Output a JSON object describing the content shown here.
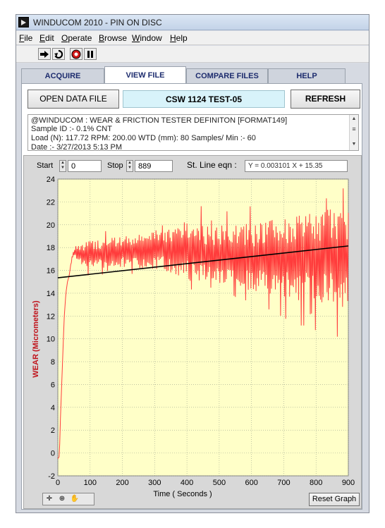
{
  "window": {
    "title": "WINDUCOM 2010 - PIN ON DISC"
  },
  "menu": [
    {
      "key": "F",
      "rest": "ile"
    },
    {
      "key": "E",
      "rest": "dit"
    },
    {
      "key": "O",
      "rest": "perate"
    },
    {
      "key": "B",
      "rest": "rowse"
    },
    {
      "key": "W",
      "rest": "indow"
    },
    {
      "key": "H",
      "rest": "elp"
    }
  ],
  "toolbar": {
    "run_icon": "run-arrow-icon",
    "run_continuous_icon": "run-continuous-icon",
    "abort_icon": "abort-stop-icon",
    "pause_icon": "pause-icon"
  },
  "tabs": [
    {
      "label": "ACQUIRE"
    },
    {
      "label": "VIEW FILE"
    },
    {
      "label": "COMPARE FILES"
    },
    {
      "label": "HELP"
    }
  ],
  "active_tab": "VIEW FILE",
  "controls": {
    "open_label": "OPEN DATA FILE",
    "file_name": "CSW 1124 TEST-05",
    "refresh_label": "REFRESH"
  },
  "info": {
    "line1": "@WINDUCOM : WEAR & FRICTION TESTER DEFINITON [FORMAT149]",
    "line2": "Sample ID :- 0.1% CNT",
    "line3": "Load (N):  117.72 RPM:   200.00 WTD (mm):   80   Samples/ Min :-   60",
    "line4": "Date :- 3/27/2013  5:13 PM"
  },
  "graph_controls": {
    "start_label": "Start",
    "start_value": "0",
    "stop_label": "Stop",
    "stop_value": "889",
    "eqn_label": "St. Line eqn :",
    "eqn_value": "Y =  0.003101  X +  15.35",
    "reset_label": "Reset Graph"
  },
  "palette_icons": [
    "cursor-move-icon",
    "zoom-icon",
    "pan-hand-icon"
  ],
  "colors": {
    "plot_bg": "#ffffc8",
    "wear_line": "#ff3c3c",
    "fit_line": "#000000",
    "grid": "#9aa28c"
  },
  "chart_data": {
    "type": "line",
    "xlabel": "Time ( Seconds )",
    "ylabel": "WEAR (Micrometers)",
    "xlim": [
      0,
      900
    ],
    "ylim": [
      -2,
      24
    ],
    "xticks": [
      0,
      100,
      200,
      300,
      400,
      500,
      600,
      700,
      800,
      900
    ],
    "yticks": [
      -2,
      0,
      2,
      4,
      6,
      8,
      10,
      12,
      14,
      16,
      18,
      20,
      22,
      24
    ],
    "grid": true,
    "series": [
      {
        "points": [
          [
            0,
            -0.5
          ],
          [
            5,
            -0.3
          ],
          [
            8,
            3
          ],
          [
            12,
            6
          ],
          [
            16,
            9
          ],
          [
            20,
            12
          ],
          [
            25,
            14
          ],
          [
            30,
            15
          ],
          [
            35,
            15.5
          ],
          [
            40,
            16.5
          ],
          [
            45,
            17.2
          ],
          [
            50,
            17.6
          ],
          [
            60,
            17.5
          ],
          [
            70,
            17.4
          ],
          [
            80,
            17.4
          ],
          [
            100,
            17.5
          ],
          [
            120,
            17.4
          ],
          [
            140,
            17.4
          ],
          [
            160,
            17.6
          ],
          [
            180,
            17.6
          ],
          [
            200,
            17.6
          ],
          [
            220,
            17.8
          ],
          [
            240,
            17.6
          ],
          [
            260,
            17.7
          ],
          [
            280,
            17.6
          ],
          [
            300,
            17.8
          ],
          [
            320,
            17.9
          ],
          [
            340,
            17.8
          ],
          [
            360,
            17.6
          ],
          [
            380,
            17.8
          ],
          [
            400,
            17.7
          ],
          [
            420,
            17.6
          ],
          [
            440,
            17.7
          ],
          [
            460,
            17.4
          ],
          [
            480,
            17.3
          ],
          [
            500,
            17.4
          ],
          [
            520,
            17.2
          ],
          [
            540,
            17.3
          ],
          [
            560,
            17.1
          ],
          [
            580,
            17.2
          ],
          [
            600,
            17.0
          ],
          [
            620,
            17.1
          ],
          [
            640,
            17.1
          ],
          [
            660,
            17.2
          ],
          [
            680,
            17.0
          ],
          [
            700,
            17.1
          ],
          [
            720,
            17.1
          ],
          [
            740,
            17.1
          ],
          [
            760,
            17.1
          ],
          [
            780,
            17.2
          ],
          [
            800,
            17.2
          ],
          [
            820,
            17.1
          ],
          [
            840,
            17.3
          ],
          [
            860,
            17.2
          ],
          [
            880,
            17.0
          ],
          [
            900,
            17.2
          ]
        ],
        "oscillation_amplitude": [
          [
            0,
            0
          ],
          [
            40,
            0
          ],
          [
            60,
            0.7
          ],
          [
            100,
            1.2
          ],
          [
            200,
            1.3
          ],
          [
            300,
            1.7
          ],
          [
            400,
            2.2
          ],
          [
            500,
            2.6
          ],
          [
            600,
            3.0
          ],
          [
            700,
            3.5
          ],
          [
            800,
            4.0
          ],
          [
            900,
            4.4
          ]
        ]
      },
      {
        "name": "St. Line eqn",
        "slope": 0.003101,
        "intercept": 15.35,
        "x": [
          0,
          900
        ]
      }
    ]
  }
}
